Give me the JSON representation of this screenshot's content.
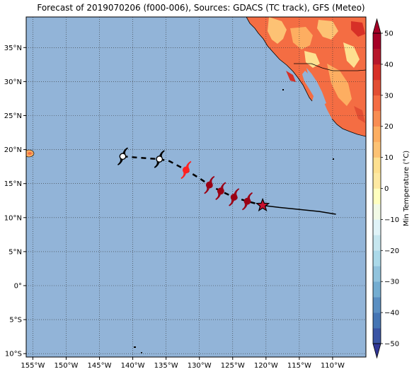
{
  "title": "Forecast of 2019070206 (f000-006), Sources: GDACS (TC track), GFS (Meteo)",
  "map": {
    "lon_range": [
      -156,
      -105
    ],
    "lat_range": [
      -10.5,
      39.5
    ],
    "ocean_color": "#92b4d8",
    "grid": "dotted",
    "lon_ticks": [
      {
        "value": -155,
        "label": "155°W"
      },
      {
        "value": -150,
        "label": "150°W"
      },
      {
        "value": -145,
        "label": "145°W"
      },
      {
        "value": -140,
        "label": "140°W"
      },
      {
        "value": -135,
        "label": "135°W"
      },
      {
        "value": -130,
        "label": "130°W"
      },
      {
        "value": -125,
        "label": "125°W"
      },
      {
        "value": -120,
        "label": "120°W"
      },
      {
        "value": -115,
        "label": "115°W"
      },
      {
        "value": -110,
        "label": "110°W"
      }
    ],
    "lat_ticks": [
      {
        "value": 35,
        "label": "35°N"
      },
      {
        "value": 30,
        "label": "30°N"
      },
      {
        "value": 25,
        "label": "25°N"
      },
      {
        "value": 20,
        "label": "20°N"
      },
      {
        "value": 15,
        "label": "15°N"
      },
      {
        "value": 10,
        "label": "10°N"
      },
      {
        "value": 5,
        "label": "5°N"
      },
      {
        "value": 0,
        "label": "0°"
      },
      {
        "value": -5,
        "label": "5°S"
      },
      {
        "value": -10,
        "label": "10°S"
      }
    ]
  },
  "track": {
    "past": [
      [
        -120.5,
        11.8
      ],
      [
        -118,
        11.5
      ],
      [
        -115,
        11.2
      ],
      [
        -112,
        10.9
      ],
      [
        -109.5,
        10.5
      ]
    ],
    "forecast": [
      [
        -141.5,
        19.0
      ],
      [
        -139,
        18.8
      ],
      [
        -136,
        18.6
      ],
      [
        -134.5,
        18.3
      ],
      [
        -132,
        17.0
      ],
      [
        -130,
        15.8
      ],
      [
        -128.5,
        14.8
      ],
      [
        -126.8,
        13.9
      ],
      [
        -124.8,
        13.0
      ],
      [
        -122.8,
        12.4
      ],
      [
        -120.5,
        11.8
      ]
    ],
    "current_position": [
      -120.5,
      11.8
    ],
    "points": [
      {
        "lon": -141.5,
        "lat": 19.0,
        "color": "#ffffff"
      },
      {
        "lon": -136,
        "lat": 18.6,
        "color": "#ffffff"
      },
      {
        "lon": -132,
        "lat": 17.0,
        "color": "#ff2020"
      },
      {
        "lon": -128.5,
        "lat": 14.8,
        "color": "#9b0014"
      },
      {
        "lon": -126.8,
        "lat": 13.9,
        "color": "#9b0014"
      },
      {
        "lon": -124.8,
        "lat": 13.0,
        "color": "#9b0014"
      },
      {
        "lon": -122.8,
        "lat": 12.4,
        "color": "#9b0014"
      }
    ]
  },
  "colorbar": {
    "label": "Min Temperature (°C)",
    "levels": [
      -50,
      -45,
      -40,
      -35,
      -30,
      -25,
      -20,
      -15,
      -10,
      -5,
      0,
      5,
      10,
      15,
      20,
      25,
      30,
      35,
      40,
      45,
      50
    ],
    "colors": [
      "#313695",
      "#3a54a4",
      "#4575b4",
      "#5b8fc2",
      "#74add1",
      "#91c3dd",
      "#abd9e9",
      "#c6e6ef",
      "#e0f3f8",
      "#f2fae6",
      "#ffffbf",
      "#fee9a2",
      "#fee090",
      "#fdc274",
      "#fdae61",
      "#f88d52",
      "#f46d43",
      "#e24e33",
      "#d73027",
      "#b7182b",
      "#a50026"
    ],
    "ticks": [
      {
        "value": 50,
        "label": "50"
      },
      {
        "value": 40,
        "label": "40"
      },
      {
        "value": 30,
        "label": "30"
      },
      {
        "value": 20,
        "label": "20"
      },
      {
        "value": 10,
        "label": "10"
      },
      {
        "value": 0,
        "label": "0"
      },
      {
        "value": -10,
        "label": "−10"
      },
      {
        "value": -20,
        "label": "−20"
      },
      {
        "value": -30,
        "label": "−30"
      },
      {
        "value": -40,
        "label": "−40"
      },
      {
        "value": -50,
        "label": "−50"
      }
    ]
  }
}
